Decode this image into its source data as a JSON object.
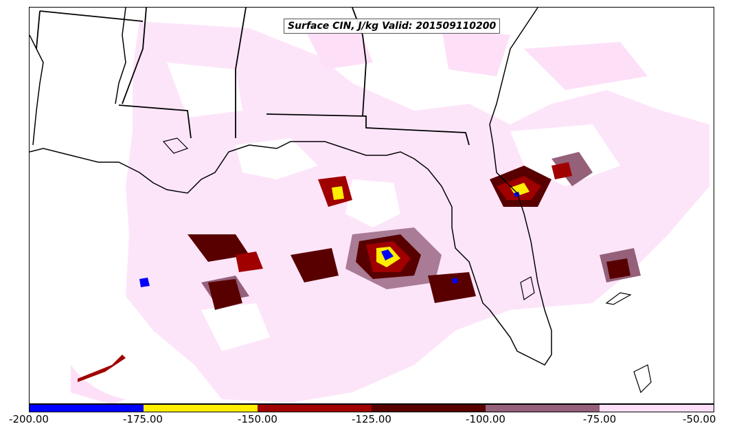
{
  "title": "Surface CIN, J/kg Valid: 201509110200",
  "map": {
    "region": "Gulf of Mexico and southeastern United States",
    "field": "Surface CIN",
    "units": "J/kg",
    "valid": "201509110200"
  },
  "colorbar": {
    "segments": [
      {
        "from": -200,
        "to": -175,
        "color": "#0000ff"
      },
      {
        "from": -175,
        "to": -150,
        "color": "#ffee00"
      },
      {
        "from": -150,
        "to": -125,
        "color": "#a00000"
      },
      {
        "from": -125,
        "to": -100,
        "color": "#580000"
      },
      {
        "from": -100,
        "to": -75,
        "color": "#94607a"
      },
      {
        "from": -75,
        "to": -50,
        "color": "#fde0f8"
      }
    ],
    "ticks": [
      "-200.00",
      "-175.00",
      "-150.00",
      "-125.00",
      "-100.00",
      "-75.00",
      "-50.00"
    ]
  }
}
